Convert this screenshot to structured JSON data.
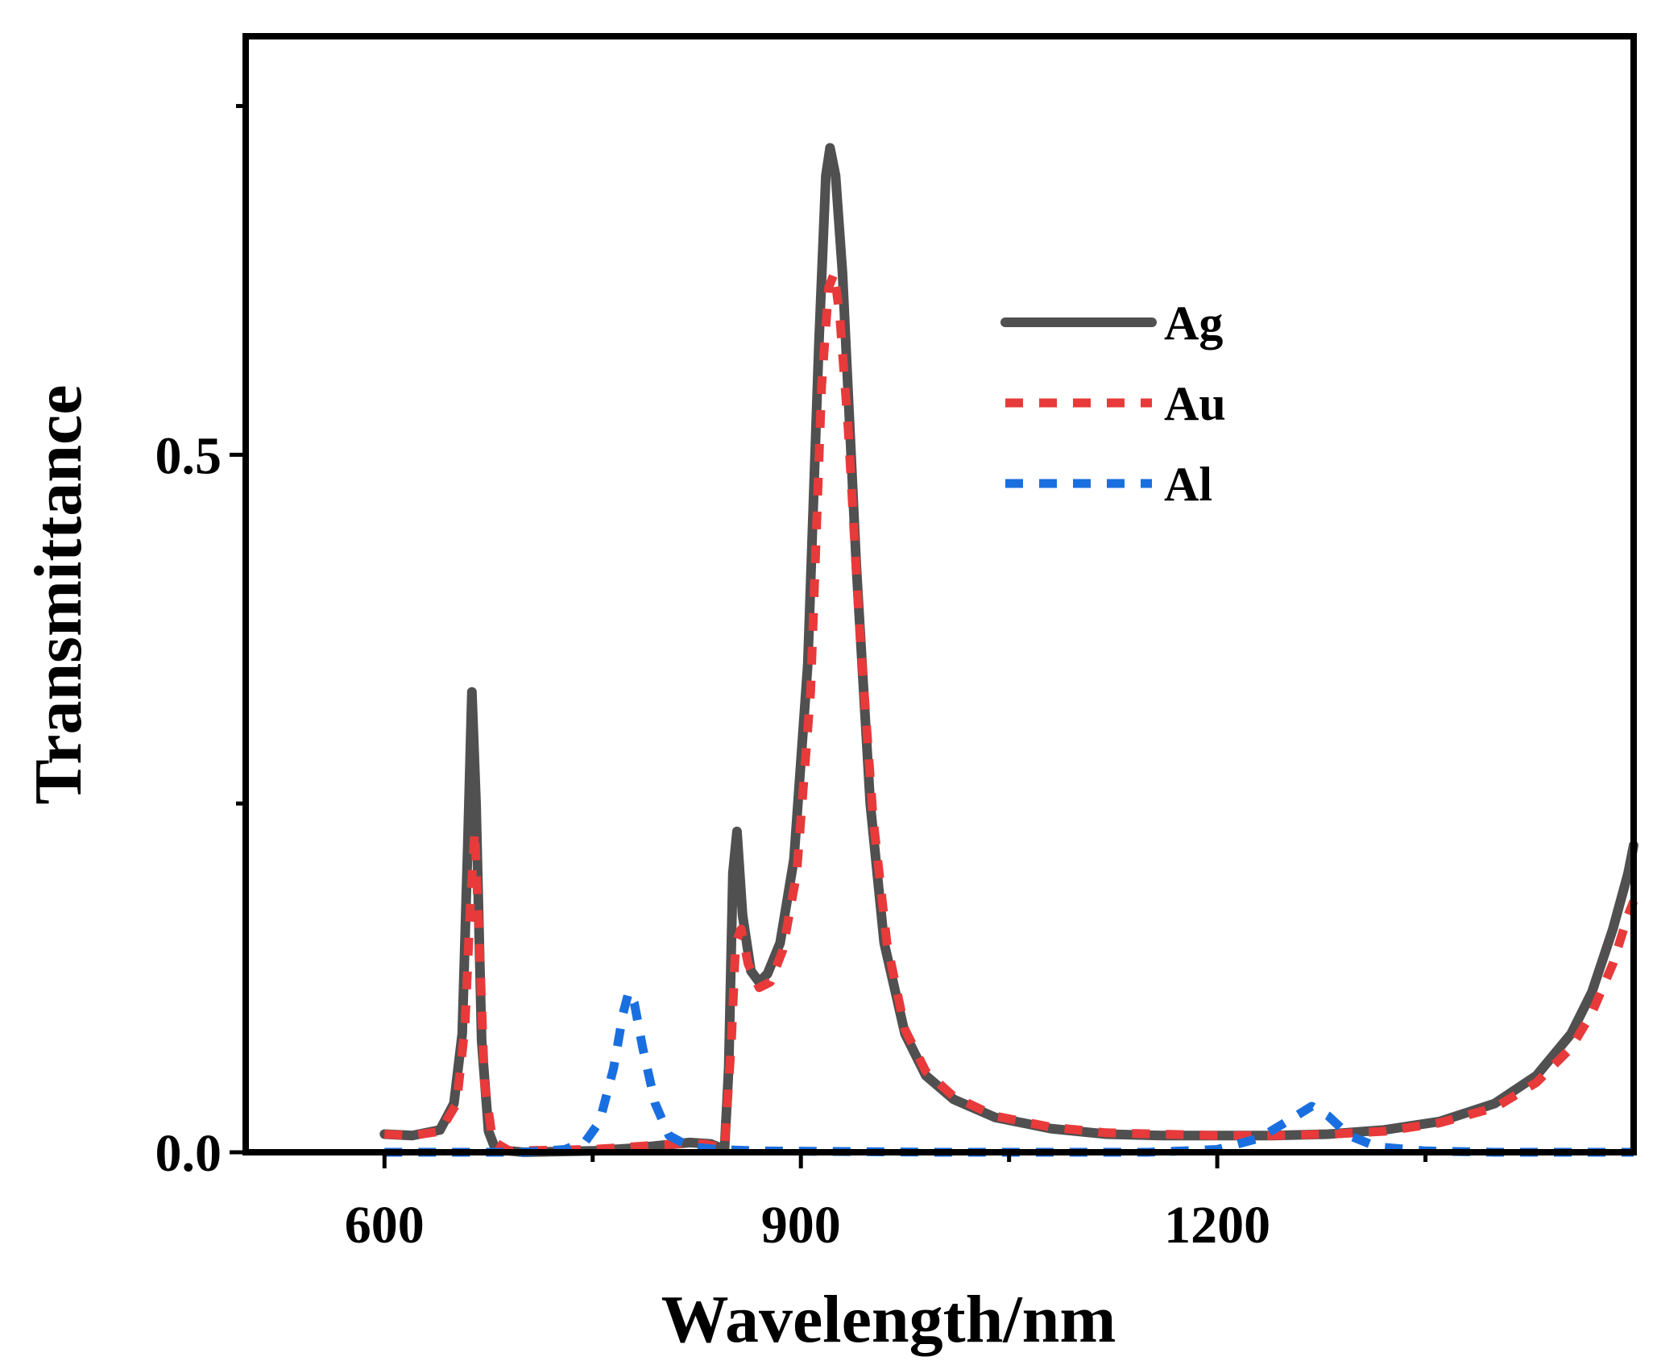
{
  "chart_data": {
    "type": "line",
    "title": "",
    "xlabel": "Wavelength/nm",
    "ylabel": "Transmittance",
    "xlim": [
      500,
      1500
    ],
    "ylim": [
      0,
      0.8
    ],
    "x_ticks": [
      600,
      900,
      1200
    ],
    "x_tick_labels": [
      "600",
      "900",
      "1200"
    ],
    "y_ticks": [
      0.0,
      0.5
    ],
    "y_tick_labels": [
      "0.0",
      "0.5"
    ],
    "legend_position": "top-right",
    "grid": false,
    "series": [
      {
        "name": "Ag",
        "color": "#505050",
        "style": "solid",
        "points": [
          [
            600,
            0.013
          ],
          [
            620,
            0.012
          ],
          [
            640,
            0.016
          ],
          [
            650,
            0.035
          ],
          [
            656,
            0.085
          ],
          [
            660,
            0.22
          ],
          [
            663,
            0.33
          ],
          [
            666,
            0.25
          ],
          [
            670,
            0.08
          ],
          [
            675,
            0.015
          ],
          [
            680,
            0.002
          ],
          [
            700,
            0.0
          ],
          [
            750,
            0.001
          ],
          [
            780,
            0.003
          ],
          [
            800,
            0.005
          ],
          [
            820,
            0.007
          ],
          [
            835,
            0.006
          ],
          [
            845,
            0.002
          ],
          [
            848,
            0.06
          ],
          [
            851,
            0.2
          ],
          [
            854,
            0.23
          ],
          [
            858,
            0.17
          ],
          [
            864,
            0.13
          ],
          [
            870,
            0.122
          ],
          [
            876,
            0.128
          ],
          [
            885,
            0.15
          ],
          [
            895,
            0.21
          ],
          [
            905,
            0.35
          ],
          [
            913,
            0.58
          ],
          [
            918,
            0.7
          ],
          [
            921,
            0.72
          ],
          [
            925,
            0.7
          ],
          [
            930,
            0.63
          ],
          [
            940,
            0.42
          ],
          [
            950,
            0.25
          ],
          [
            960,
            0.15
          ],
          [
            975,
            0.085
          ],
          [
            990,
            0.055
          ],
          [
            1010,
            0.038
          ],
          [
            1040,
            0.025
          ],
          [
            1080,
            0.017
          ],
          [
            1120,
            0.013
          ],
          [
            1160,
            0.012
          ],
          [
            1200,
            0.012
          ],
          [
            1240,
            0.012
          ],
          [
            1280,
            0.013
          ],
          [
            1320,
            0.016
          ],
          [
            1360,
            0.022
          ],
          [
            1400,
            0.035
          ],
          [
            1430,
            0.055
          ],
          [
            1455,
            0.085
          ],
          [
            1470,
            0.115
          ],
          [
            1485,
            0.16
          ],
          [
            1496,
            0.2
          ],
          [
            1500,
            0.22
          ]
        ]
      },
      {
        "name": "Au",
        "color": "#e83a3a",
        "style": "dashed",
        "points": [
          [
            600,
            0.013
          ],
          [
            620,
            0.012
          ],
          [
            640,
            0.015
          ],
          [
            652,
            0.035
          ],
          [
            658,
            0.09
          ],
          [
            662,
            0.18
          ],
          [
            665,
            0.23
          ],
          [
            668,
            0.16
          ],
          [
            672,
            0.05
          ],
          [
            678,
            0.008
          ],
          [
            690,
            0.001
          ],
          [
            750,
            0.002
          ],
          [
            780,
            0.004
          ],
          [
            810,
            0.006
          ],
          [
            830,
            0.006
          ],
          [
            845,
            0.003
          ],
          [
            850,
            0.08
          ],
          [
            853,
            0.15
          ],
          [
            857,
            0.16
          ],
          [
            862,
            0.135
          ],
          [
            870,
            0.118
          ],
          [
            878,
            0.122
          ],
          [
            887,
            0.145
          ],
          [
            897,
            0.2
          ],
          [
            907,
            0.33
          ],
          [
            915,
            0.55
          ],
          [
            920,
            0.62
          ],
          [
            924,
            0.63
          ],
          [
            928,
            0.6
          ],
          [
            934,
            0.52
          ],
          [
            942,
            0.38
          ],
          [
            952,
            0.24
          ],
          [
            962,
            0.15
          ],
          [
            975,
            0.088
          ],
          [
            990,
            0.058
          ],
          [
            1010,
            0.04
          ],
          [
            1040,
            0.026
          ],
          [
            1080,
            0.018
          ],
          [
            1120,
            0.014
          ],
          [
            1160,
            0.013
          ],
          [
            1200,
            0.012
          ],
          [
            1240,
            0.012
          ],
          [
            1280,
            0.013
          ],
          [
            1320,
            0.015
          ],
          [
            1360,
            0.021
          ],
          [
            1400,
            0.032
          ],
          [
            1430,
            0.05
          ],
          [
            1455,
            0.075
          ],
          [
            1470,
            0.1
          ],
          [
            1485,
            0.135
          ],
          [
            1496,
            0.17
          ],
          [
            1500,
            0.18
          ]
        ]
      },
      {
        "name": "Al",
        "color": "#1a6fe0",
        "style": "dashed",
        "points": [
          [
            600,
            0.0
          ],
          [
            700,
            0.0
          ],
          [
            730,
            0.002
          ],
          [
            745,
            0.008
          ],
          [
            755,
            0.022
          ],
          [
            765,
            0.06
          ],
          [
            772,
            0.1
          ],
          [
            776,
            0.115
          ],
          [
            780,
            0.107
          ],
          [
            786,
            0.075
          ],
          [
            795,
            0.035
          ],
          [
            805,
            0.012
          ],
          [
            820,
            0.004
          ],
          [
            840,
            0.002
          ],
          [
            870,
            0.001
          ],
          [
            1000,
            0.0
          ],
          [
            1150,
            0.0
          ],
          [
            1200,
            0.002
          ],
          [
            1230,
            0.01
          ],
          [
            1255,
            0.025
          ],
          [
            1268,
            0.033
          ],
          [
            1280,
            0.026
          ],
          [
            1295,
            0.012
          ],
          [
            1315,
            0.004
          ],
          [
            1350,
            0.001
          ],
          [
            1400,
            0.0
          ],
          [
            1500,
            0.0
          ]
        ]
      }
    ]
  }
}
